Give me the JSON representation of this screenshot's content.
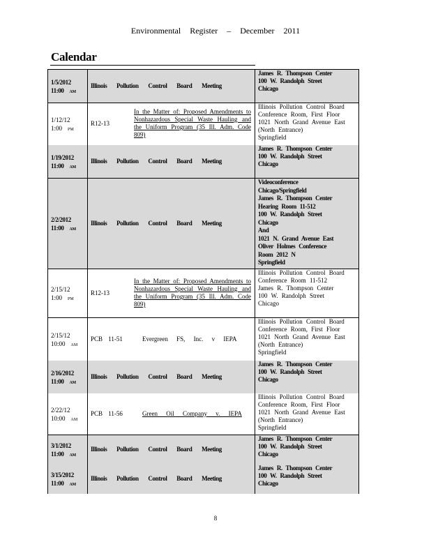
{
  "header": "Environmental Register – December 2011",
  "section_title": "Calendar",
  "page_number": "8",
  "rows": [
    {
      "date": "1/5/2012",
      "time": "11:00",
      "ampm": "AM",
      "bold": true,
      "gray": true,
      "desc": "Illinois Pollution Control Board Meeting",
      "location": [
        "James R. Thompson Center",
        "100 W. Randolph Street",
        "Chicago"
      ]
    },
    {
      "date": "1/12/12",
      "time": "1:00",
      "ampm": "PM",
      "bold": false,
      "gray": false,
      "case": "R12-13",
      "title": "In the Matter of: Proposed Amendments to Nonhazardous Special Waste Hauling and the Uniform Program (35 Ill. Adm. Code 809)",
      "location": [
        "Illinois Pollution Control Board",
        "Conference Room, First Floor",
        "1021 North Grand Avenue East",
        "(North Entrance)",
        "Springfield"
      ]
    },
    {
      "date": "1/19/2012",
      "time": "11:00",
      "ampm": "AM",
      "bold": true,
      "gray": true,
      "desc": "Illinois Pollution Control Board Meeting",
      "location": [
        "James R. Thompson Center",
        "100 W. Randolph Street",
        "Chicago"
      ]
    },
    {
      "date": "2/2/2012",
      "time": "11:00",
      "ampm": "AM",
      "bold": true,
      "gray": true,
      "desc": "Illinois Pollution Control Board Meeting",
      "location": [
        "Videoconference",
        "Chicago/Springfield",
        "James R. Thompson Center",
        "Hearing Room 11-512",
        "100 W. Randolph Street",
        "Chicago",
        "And",
        "1021 N. Grand Avenue East",
        "Oliver Holmes Conference",
        "Room 2012 N",
        "Springfield"
      ]
    },
    {
      "date": "2/15/12",
      "time": "1:00",
      "ampm": "PM",
      "bold": false,
      "gray": false,
      "case": "R12-13",
      "title": "In the Matter of: Proposed Amendments to Nonhazardous Special Waste Hauling and the Uniform Program (35 Ill. Adm. Code 809)",
      "location": [
        "Illinois Pollution Control Board",
        "Conference Room 11-512",
        "James R. Thompson Center",
        "100 W. Randolph Street",
        "Chicago"
      ]
    },
    {
      "date": "2/15/12",
      "time": "10:00",
      "ampm": "AM",
      "bold": false,
      "gray": false,
      "case": "PCB 11-51",
      "pcb_title": "Evergreen FS, Inc. v IEPA",
      "underline": false,
      "location": [
        "Illinois Pollution Control Board",
        "Conference Room, First Floor",
        "1021 North Grand Avenue East",
        "(North Entrance)",
        "Springfield"
      ]
    },
    {
      "date": "2/16/2012",
      "time": "11:00",
      "ampm": "AM",
      "bold": true,
      "gray": true,
      "desc": "Illinois Pollution Control Board Meeting",
      "location": [
        "James R. Thompson Center",
        "100 W. Randolph Street",
        "Chicago"
      ]
    },
    {
      "date": "2/22/12",
      "time": "10:00",
      "ampm": "AM",
      "bold": false,
      "gray": false,
      "case": "PCB 11-56",
      "pcb_title": "Green Oil Company v. IEPA",
      "underline": true,
      "location": [
        "Illinois Pollution Control Board",
        "Conference Room, First Floor",
        "1021 North Grand Avenue East",
        "(North Entrance)",
        "Springfield"
      ]
    },
    {
      "date": "3/1/2012",
      "time": "11:00",
      "ampm": "AM",
      "bold": true,
      "gray": true,
      "desc": "Illinois Pollution Control Board Meeting",
      "location": [
        "James R. Thompson Center",
        "100 W. Randolph Street",
        "Chicago"
      ]
    },
    {
      "date": "3/15/2012",
      "time": "11:00",
      "ampm": "AM",
      "bold": true,
      "gray": true,
      "desc": "Illinois Pollution Control Board Meeting",
      "location": [
        "James R. Thompson Center",
        "100 W. Randolph Street",
        "Chicago"
      ]
    }
  ]
}
